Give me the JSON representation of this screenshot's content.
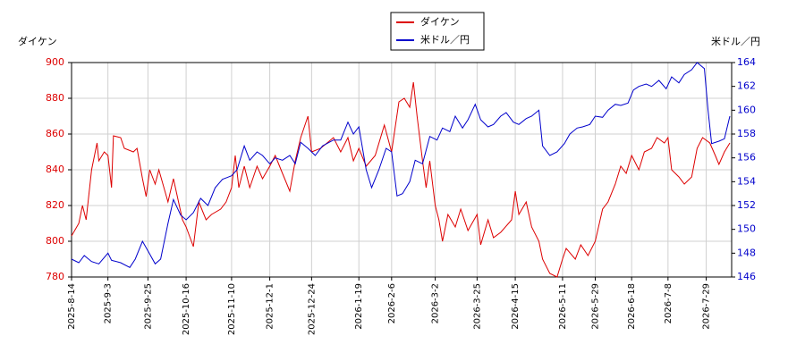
{
  "chart_data": {
    "type": "line",
    "y_label": "ダイケン",
    "y2_label": "米ドル／円",
    "xlim": [
      "2025-8-14",
      "2026-8-12"
    ],
    "xticks": [
      "2025-8-14",
      "2025-9-3",
      "2025-9-25",
      "2025-10-16",
      "2025-11-10",
      "2025-12-1",
      "2025-12-24",
      "2026-1-19",
      "2026-2-6",
      "2026-3-2",
      "2026-3-25",
      "2026-4-15",
      "2026-5-11",
      "2026-5-29",
      "2026-6-18",
      "2026-7-8",
      "2026-7-29"
    ],
    "ylim": [
      780,
      900
    ],
    "yticks": [
      780,
      800,
      820,
      840,
      860,
      880,
      900
    ],
    "y2lim": [
      146,
      164
    ],
    "y2ticks": [
      146,
      148,
      150,
      152,
      154,
      156,
      158,
      160,
      162,
      164
    ],
    "grid": true,
    "series": [
      {
        "name": "ダイケン",
        "color": "#dd0000",
        "axis": "y",
        "x": [
          "2025-8-14",
          "2025-8-18",
          "2025-8-20",
          "2025-8-22",
          "2025-8-25",
          "2025-8-28",
          "2025-8-29",
          "2025-9-1",
          "2025-9-3",
          "2025-9-5",
          "2025-9-6",
          "2025-9-10",
          "2025-9-12",
          "2025-9-17",
          "2025-9-19",
          "2025-9-22",
          "2025-9-24",
          "2025-9-26",
          "2025-9-29",
          "2025-10-1",
          "2025-10-6",
          "2025-10-9",
          "2025-10-14",
          "2025-10-16",
          "2025-10-20",
          "2025-10-23",
          "2025-10-27",
          "2025-10-30",
          "2025-11-4",
          "2025-11-7",
          "2025-11-10",
          "2025-11-12",
          "2025-11-14",
          "2025-11-17",
          "2025-11-20",
          "2025-11-24",
          "2025-11-27",
          "2025-12-1",
          "2025-12-4",
          "2025-12-8",
          "2025-12-12",
          "2025-12-15",
          "2025-12-18",
          "2025-12-22",
          "2025-12-24",
          "2025-12-29",
          "2026-1-5",
          "2026-1-9",
          "2026-1-13",
          "2026-1-16",
          "2026-1-19",
          "2026-1-23",
          "2026-1-28",
          "2026-2-2",
          "2026-2-6",
          "2026-2-10",
          "2026-2-13",
          "2026-2-16",
          "2026-2-18",
          "2026-2-20",
          "2026-2-23",
          "2026-2-25",
          "2026-2-27",
          "2026-3-2",
          "2026-3-4",
          "2026-3-6",
          "2026-3-9",
          "2026-3-13",
          "2026-3-16",
          "2026-3-20",
          "2026-3-25",
          "2026-3-27",
          "2026-3-31",
          "2026-4-3",
          "2026-4-7",
          "2026-4-13",
          "2026-4-15",
          "2026-4-17",
          "2026-4-21",
          "2026-4-24",
          "2026-4-28",
          "2026-4-30",
          "2026-5-4",
          "2026-5-8",
          "2026-5-11",
          "2026-5-13",
          "2026-5-18",
          "2026-5-21",
          "2026-5-25",
          "2026-5-29",
          "2026-6-2",
          "2026-6-5",
          "2026-6-9",
          "2026-6-12",
          "2026-6-15",
          "2026-6-18",
          "2026-6-22",
          "2026-6-25",
          "2026-6-29",
          "2026-7-2",
          "2026-7-6",
          "2026-7-8",
          "2026-7-10",
          "2026-7-14",
          "2026-7-17",
          "2026-7-21",
          "2026-7-24",
          "2026-7-27",
          "2026-7-31",
          "2026-8-3",
          "2026-8-5",
          "2026-8-8",
          "2026-8-11"
        ],
        "values": [
          803,
          810,
          820,
          812,
          840,
          855,
          845,
          850,
          848,
          830,
          859,
          858,
          852,
          850,
          852,
          835,
          825,
          840,
          832,
          840,
          822,
          835,
          812,
          808,
          797,
          822,
          812,
          815,
          818,
          822,
          830,
          848,
          830,
          842,
          830,
          842,
          835,
          842,
          848,
          838,
          828,
          845,
          858,
          870,
          850,
          852,
          858,
          850,
          858,
          845,
          852,
          842,
          848,
          865,
          850,
          878,
          880,
          875,
          889,
          870,
          845,
          830,
          845,
          820,
          812,
          800,
          815,
          808,
          818,
          806,
          815,
          798,
          812,
          802,
          805,
          812,
          828,
          815,
          822,
          808,
          800,
          790,
          782,
          780,
          790,
          796,
          790,
          798,
          792,
          800,
          818,
          822,
          832,
          842,
          838,
          848,
          840,
          850,
          852,
          858,
          855,
          858,
          840,
          836,
          832,
          836,
          852,
          858,
          855,
          848,
          843,
          850,
          855
        ]
      },
      {
        "name": "米ドル／円",
        "color": "#0000cc",
        "axis": "y2",
        "x": [
          "2025-8-14",
          "2025-8-18",
          "2025-8-21",
          "2025-8-25",
          "2025-8-29",
          "2025-9-3",
          "2025-9-5",
          "2025-9-10",
          "2025-9-15",
          "2025-9-18",
          "2025-9-22",
          "2025-9-25",
          "2025-9-29",
          "2025-10-2",
          "2025-10-6",
          "2025-10-9",
          "2025-10-13",
          "2025-10-16",
          "2025-10-20",
          "2025-10-24",
          "2025-10-28",
          "2025-11-1",
          "2025-11-5",
          "2025-11-10",
          "2025-11-13",
          "2025-11-17",
          "2025-11-20",
          "2025-11-24",
          "2025-11-27",
          "2025-12-1",
          "2025-12-4",
          "2025-12-8",
          "2025-12-12",
          "2025-12-15",
          "2025-12-18",
          "2025-12-22",
          "2025-12-26",
          "2025-12-30",
          "2026-1-5",
          "2026-1-9",
          "2026-1-13",
          "2026-1-16",
          "2026-1-19",
          "2026-1-23",
          "2026-1-26",
          "2026-1-30",
          "2026-2-3",
          "2026-2-6",
          "2026-2-9",
          "2026-2-12",
          "2026-2-16",
          "2026-2-19",
          "2026-2-23",
          "2026-2-27",
          "2026-3-3",
          "2026-3-6",
          "2026-3-10",
          "2026-3-13",
          "2026-3-17",
          "2026-3-20",
          "2026-3-24",
          "2026-3-27",
          "2026-3-31",
          "2026-4-3",
          "2026-4-7",
          "2026-4-10",
          "2026-4-14",
          "2026-4-17",
          "2026-4-21",
          "2026-4-24",
          "2026-4-28",
          "2026-4-30",
          "2026-5-4",
          "2026-5-8",
          "2026-5-12",
          "2026-5-15",
          "2026-5-19",
          "2026-5-22",
          "2026-5-26",
          "2026-5-29",
          "2026-6-2",
          "2026-6-5",
          "2026-6-9",
          "2026-6-12",
          "2026-6-16",
          "2026-6-19",
          "2026-6-22",
          "2026-6-26",
          "2026-6-29",
          "2026-7-3",
          "2026-7-7",
          "2026-7-10",
          "2026-7-14",
          "2026-7-17",
          "2026-7-21",
          "2026-7-24",
          "2026-7-28",
          "2026-7-30",
          "2026-8-1",
          "2026-8-5",
          "2026-8-8",
          "2026-8-11"
        ],
        "values": [
          147.5,
          147.2,
          147.8,
          147.3,
          147.1,
          148.0,
          147.4,
          147.2,
          146.8,
          147.5,
          149.0,
          148.2,
          147.1,
          147.5,
          150.5,
          152.5,
          151.2,
          150.8,
          151.4,
          152.6,
          152.0,
          153.5,
          154.2,
          154.5,
          155.0,
          157.0,
          155.8,
          156.5,
          156.2,
          155.5,
          156.0,
          155.8,
          156.2,
          155.5,
          157.3,
          156.8,
          156.2,
          157.0,
          157.5,
          157.5,
          159.0,
          158.0,
          158.6,
          155.0,
          153.5,
          155.0,
          156.8,
          156.5,
          152.8,
          153.0,
          154.0,
          155.8,
          155.5,
          157.8,
          157.5,
          158.5,
          158.2,
          159.5,
          158.5,
          159.2,
          160.5,
          159.2,
          158.6,
          158.8,
          159.5,
          159.8,
          159.0,
          158.8,
          159.3,
          159.5,
          160.0,
          157.0,
          156.2,
          156.5,
          157.2,
          158.0,
          158.5,
          158.6,
          158.8,
          159.5,
          159.4,
          160.0,
          160.5,
          160.4,
          160.6,
          161.7,
          162.0,
          162.2,
          162.0,
          162.5,
          161.8,
          162.8,
          162.3,
          163.0,
          163.4,
          164.0,
          163.5,
          160.0,
          157.2,
          157.4,
          157.6,
          159.5
        ]
      }
    ]
  }
}
